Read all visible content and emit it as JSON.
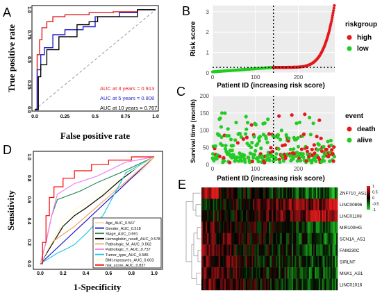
{
  "panel_letters": {
    "A": "A",
    "B": "B",
    "C": "C",
    "D": "D",
    "E": "E"
  },
  "chart_data": [
    {
      "panel": "A",
      "type": "line",
      "title": "",
      "xlabel": "False positive rate",
      "ylabel": "True positive rate",
      "xlim": [
        0,
        1
      ],
      "ylim": [
        0,
        1
      ],
      "x_ticks": [
        "0.0",
        "0.25",
        "0.5",
        "0.75",
        "1.0"
      ],
      "y_ticks": [
        "0.0",
        "0.25",
        "0.5",
        "0.75",
        "1.0"
      ],
      "series": [
        {
          "name": "AUC at 3 years = 0.913",
          "color": "#e31a1c",
          "x": [
            0,
            0.02,
            0.02,
            0.04,
            0.04,
            0.06,
            0.06,
            0.1,
            0.1,
            0.15,
            0.15,
            0.25,
            0.25,
            0.45,
            0.45,
            0.65,
            0.65,
            0.85,
            0.85,
            1.0
          ],
          "y": [
            0,
            0,
            0.55,
            0.55,
            0.7,
            0.7,
            0.82,
            0.82,
            0.88,
            0.88,
            0.93,
            0.93,
            0.95,
            0.95,
            0.97,
            0.97,
            0.98,
            0.98,
            1.0,
            1.0
          ]
        },
        {
          "name": "AUC at 5 years = 0.808",
          "color": "#1f1fc8",
          "x": [
            0,
            0.02,
            0.02,
            0.05,
            0.05,
            0.08,
            0.08,
            0.15,
            0.15,
            0.25,
            0.25,
            0.4,
            0.4,
            0.5,
            0.5,
            0.7,
            0.7,
            0.85,
            0.85,
            1.0
          ],
          "y": [
            0,
            0,
            0.4,
            0.4,
            0.55,
            0.55,
            0.62,
            0.62,
            0.75,
            0.75,
            0.8,
            0.8,
            0.83,
            0.83,
            0.93,
            0.93,
            0.97,
            0.97,
            1.0,
            1.0
          ]
        },
        {
          "name": "AUC at 10 years = 0.767",
          "color": "#000000",
          "x": [
            0,
            0.03,
            0.03,
            0.05,
            0.05,
            0.1,
            0.1,
            0.2,
            0.2,
            0.35,
            0.35,
            0.45,
            0.45,
            0.52,
            0.52,
            0.85,
            0.85,
            1.0
          ],
          "y": [
            0,
            0,
            0.33,
            0.33,
            0.45,
            0.45,
            0.6,
            0.6,
            0.73,
            0.73,
            0.85,
            0.85,
            0.88,
            0.88,
            0.93,
            0.93,
            1.0,
            1.0
          ]
        }
      ],
      "legend_position": "bottom-right"
    },
    {
      "panel": "B",
      "type": "scatter",
      "title": "",
      "xlabel": "Patient ID (increasing risk score)",
      "ylabel": "Risk score",
      "xlim": [
        0,
        285
      ],
      "ylim": [
        0,
        3.3
      ],
      "x_ticks": [
        0,
        100,
        200
      ],
      "y_ticks": [
        0,
        1,
        2,
        3
      ],
      "cutoff_x": 142,
      "cutoff_y": 0.27,
      "n_patients": 285,
      "legend_title": "riskgroup",
      "series": [
        {
          "name": "high",
          "color": "#e31a1c"
        },
        {
          "name": "low",
          "color": "#22cc22"
        }
      ],
      "curve": {
        "start": 0.05,
        "mid": 0.27,
        "end": 3.3
      }
    },
    {
      "panel": "C",
      "type": "scatter",
      "title": "",
      "xlabel": "Patient ID (increasing risk score)",
      "ylabel": "Survival time (month)",
      "xlim": [
        0,
        285
      ],
      "ylim": [
        0,
        200
      ],
      "x_ticks": [
        0,
        100,
        200
      ],
      "y_ticks": [
        0,
        50,
        100,
        150,
        200
      ],
      "cutoff_x": 142,
      "legend_title": "event",
      "series": [
        {
          "name": "death",
          "color": "#e31a1c"
        },
        {
          "name": "alive",
          "color": "#22cc22"
        }
      ]
    },
    {
      "panel": "D",
      "type": "line",
      "title": "",
      "xlabel": "1-Specificity",
      "ylabel": "Sensitivity",
      "xlim": [
        0,
        1
      ],
      "ylim": [
        0,
        1
      ],
      "x_ticks": [
        "0.0",
        "0.2",
        "0.4",
        "0.6",
        "0.8",
        "1.0"
      ],
      "y_ticks": [
        "0.0",
        "0.2",
        "0.4",
        "0.6",
        "0.8",
        "1.0"
      ],
      "legend_position": "bottom-right",
      "series": [
        {
          "name": "Age_AUC_0.567",
          "color": "#f5deb3",
          "x": [
            0,
            0.15,
            0.3,
            0.5,
            0.7,
            0.9,
            1
          ],
          "y": [
            0,
            0.3,
            0.45,
            0.6,
            0.72,
            0.88,
            1
          ]
        },
        {
          "name": "Gender_AUC_0.518",
          "color": "#1010d0",
          "x": [
            0,
            1
          ],
          "y": [
            0,
            1
          ]
        },
        {
          "name": "Stage_AUC_0.691",
          "color": "#2e8b57",
          "x": [
            0,
            0.05,
            0.1,
            0.15,
            0.35,
            0.5,
            0.7,
            0.9,
            1
          ],
          "y": [
            0,
            0.2,
            0.45,
            0.6,
            0.68,
            0.76,
            0.85,
            0.95,
            1
          ]
        },
        {
          "name": "Hemoglobin_result_AUC_0.578",
          "color": "#000000",
          "x": [
            0,
            0.2,
            0.3,
            0.4,
            0.55,
            0.7,
            0.85,
            1
          ],
          "y": [
            0,
            0.35,
            0.45,
            0.52,
            0.64,
            0.78,
            0.9,
            1
          ]
        },
        {
          "name": "Pathologic_M_AUC_0.562",
          "color": "#f4a460",
          "x": [
            0,
            0.1,
            0.3,
            0.7,
            1
          ],
          "y": [
            0,
            0.2,
            0.35,
            0.72,
            1
          ]
        },
        {
          "name": "Pathologic_T_AUC_0.737",
          "color": "#ee82ee",
          "x": [
            0,
            0.05,
            0.1,
            0.15,
            0.3,
            0.5,
            0.75,
            0.9,
            1
          ],
          "y": [
            0,
            0.2,
            0.45,
            0.65,
            0.75,
            0.82,
            0.95,
            0.98,
            1
          ]
        },
        {
          "name": "Tumor_type_AUC_0.585",
          "color": "#1ec8e6",
          "x": [
            0,
            0.15,
            0.25,
            0.3,
            0.4,
            0.55,
            0.75,
            1
          ],
          "y": [
            0,
            0.1,
            0.15,
            0.18,
            0.28,
            0.45,
            0.85,
            1
          ]
        },
        {
          "name": "BMI.exposures_AUC_0.603",
          "color": "#fffacd",
          "x": [
            0,
            0.2,
            0.3,
            0.5,
            0.7,
            1
          ],
          "y": [
            0,
            0.4,
            0.5,
            0.65,
            0.8,
            1
          ]
        },
        {
          "name": "risk_score_AUC_0.837",
          "color": "#ff0000",
          "x": [
            0,
            0.02,
            0.02,
            0.05,
            0.05,
            0.08,
            0.08,
            0.12,
            0.12,
            0.2,
            0.2,
            0.3,
            0.3,
            0.45,
            0.45,
            0.6,
            0.6,
            0.8,
            0.8,
            1
          ],
          "y": [
            0,
            0,
            0.2,
            0.2,
            0.45,
            0.45,
            0.62,
            0.62,
            0.72,
            0.72,
            0.8,
            0.8,
            0.87,
            0.87,
            0.93,
            0.93,
            0.97,
            0.97,
            1,
            1
          ]
        }
      ]
    },
    {
      "panel": "E",
      "type": "heatmap",
      "title": "",
      "rows": [
        "ZNF710_AS1",
        "LINC00896",
        "LINC01108",
        "MIR100HG",
        "SCN1A_AS1",
        "FAM230C",
        "SIRLNT",
        "MNX1_AS1",
        "LINC01016"
      ],
      "n_columns": 95,
      "colorbar": {
        "ticks": [
          "1",
          "0.5",
          "0",
          "-0.5",
          "-1"
        ],
        "low": "#22cc22",
        "mid": "#000000",
        "high": "#e31a1c"
      }
    }
  ]
}
